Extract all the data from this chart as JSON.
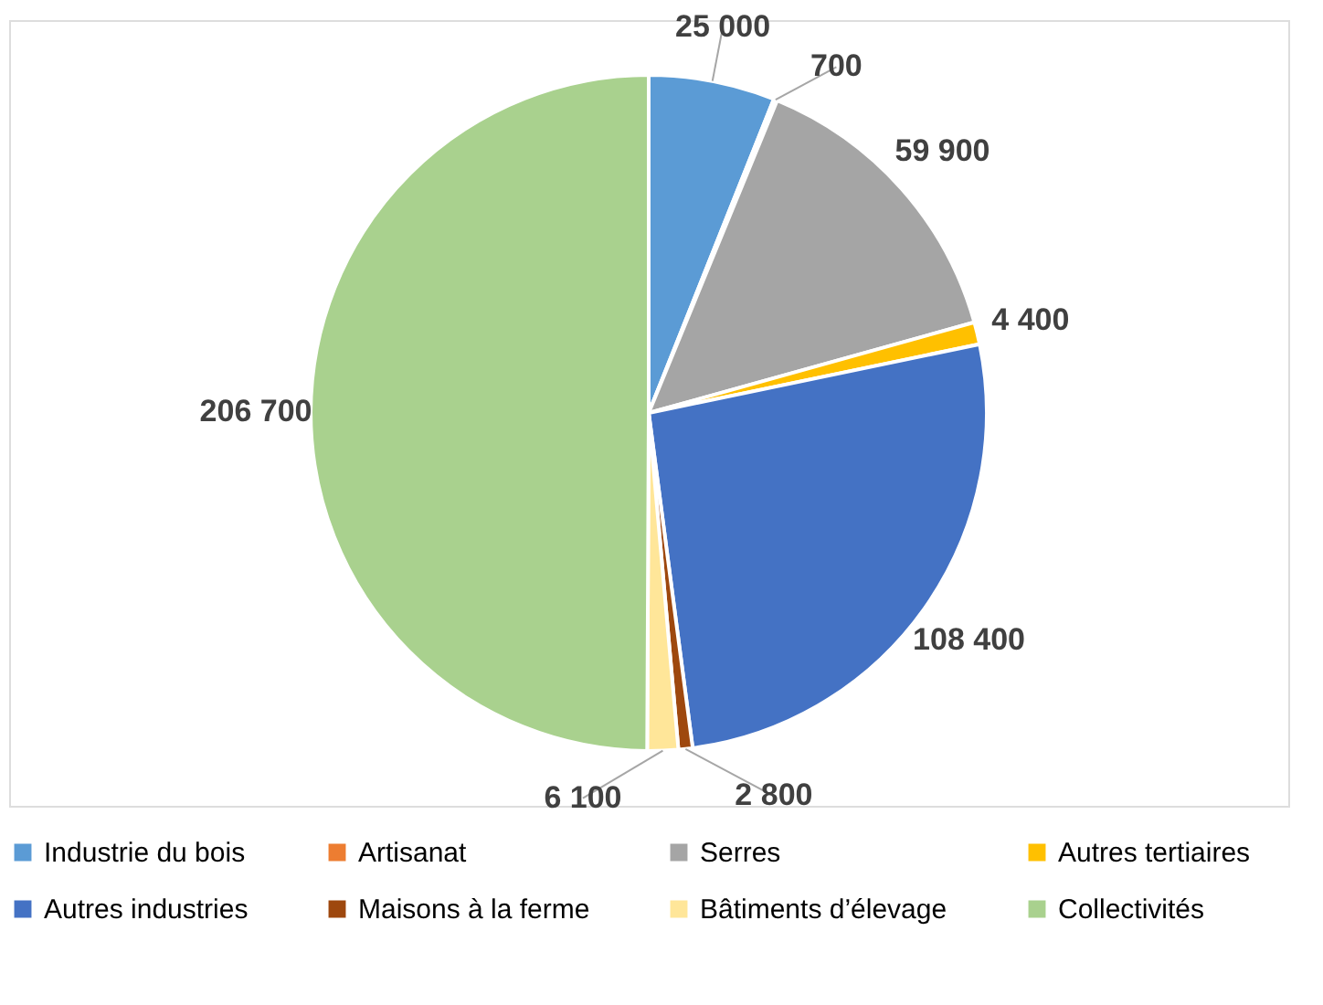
{
  "chart_data": {
    "type": "pie",
    "categories": [
      "Industrie du bois",
      "Artisanat",
      "Serres",
      "Autres tertiaires",
      "Autres industries",
      "Maisons à la ferme",
      "Bâtiments d’élevage",
      "Collectivités"
    ],
    "values": [
      25000,
      700,
      59900,
      4400,
      108400,
      2800,
      6100,
      206700
    ],
    "value_labels": [
      "25 000",
      "700",
      "59 900",
      "4 400",
      "108 400",
      "2 800",
      "6 100",
      "206 700"
    ],
    "colors": [
      "#5b9bd5",
      "#ed7d31",
      "#a5a5a5",
      "#ffc000",
      "#4472c4",
      "#9e480e",
      "#ffe699",
      "#a9d18e"
    ],
    "legend": "bottom"
  }
}
